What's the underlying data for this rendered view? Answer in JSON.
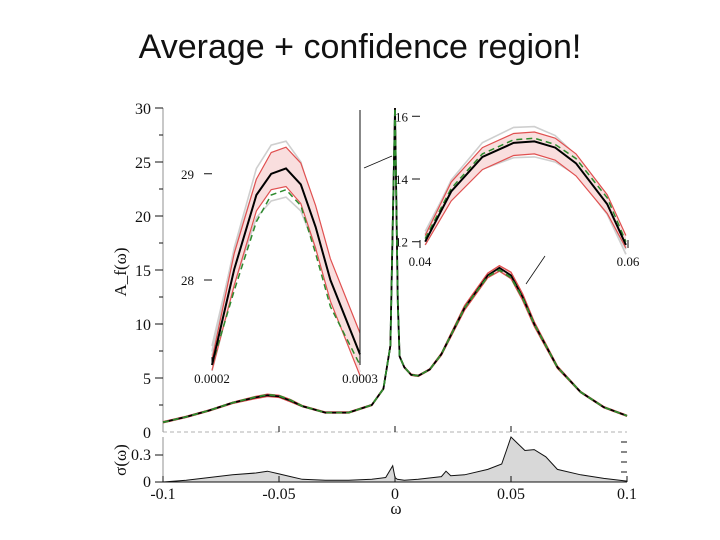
{
  "title": "Average + confidence region!",
  "chart_data": [
    {
      "name": "main",
      "type": "line",
      "ylabel": "A_f(ω)",
      "ylim": [
        0,
        30
      ],
      "xlim": [
        -0.1,
        0.1
      ],
      "yticks": [
        {
          "v": 0,
          "t": "0"
        },
        {
          "v": 5,
          "t": "5"
        },
        {
          "v": 10,
          "t": "10"
        },
        {
          "v": 15,
          "t": "15"
        },
        {
          "v": 20,
          "t": "20"
        },
        {
          "v": 25,
          "t": "25"
        },
        {
          "v": 30,
          "t": "30"
        }
      ],
      "series": [
        {
          "name": "average",
          "color": "#000000",
          "x": [
            -0.1,
            -0.09,
            -0.08,
            -0.07,
            -0.06,
            -0.055,
            -0.05,
            -0.045,
            -0.04,
            -0.03,
            -0.02,
            -0.01,
            -0.005,
            -0.002,
            0.0,
            0.0012,
            0.002,
            0.004,
            0.007,
            0.01,
            0.015,
            0.02,
            0.03,
            0.04,
            0.045,
            0.05,
            0.055,
            0.06,
            0.07,
            0.08,
            0.09,
            0.1
          ],
          "y": [
            0.9,
            1.4,
            2.0,
            2.7,
            3.2,
            3.4,
            3.3,
            2.9,
            2.4,
            1.8,
            1.8,
            2.5,
            4.0,
            8.0,
            30.0,
            12.0,
            7.0,
            6.0,
            5.3,
            5.2,
            5.8,
            7.2,
            11.5,
            14.5,
            15.2,
            14.5,
            12.5,
            10.0,
            6.0,
            3.7,
            2.3,
            1.5
          ]
        },
        {
          "name": "confidence-upper",
          "color": "#e05050",
          "x": [
            -0.1,
            -0.09,
            -0.08,
            -0.07,
            -0.06,
            -0.055,
            -0.05,
            -0.045,
            -0.04,
            -0.03,
            -0.02,
            -0.01,
            -0.005,
            -0.002,
            0.0,
            0.0012,
            0.002,
            0.004,
            0.007,
            0.01,
            0.015,
            0.02,
            0.03,
            0.04,
            0.045,
            0.05,
            0.055,
            0.06,
            0.07,
            0.08,
            0.09,
            0.1
          ],
          "y": [
            0.95,
            1.45,
            2.05,
            2.75,
            3.3,
            3.5,
            3.4,
            3.0,
            2.45,
            1.85,
            1.85,
            2.55,
            4.05,
            8.1,
            30.0,
            12.1,
            7.05,
            6.05,
            5.35,
            5.25,
            5.85,
            7.3,
            11.7,
            14.7,
            15.4,
            14.8,
            12.8,
            10.2,
            6.1,
            3.75,
            2.35,
            1.55
          ]
        },
        {
          "name": "confidence-lower",
          "color": "#e05050",
          "x": [
            -0.1,
            -0.09,
            -0.08,
            -0.07,
            -0.06,
            -0.055,
            -0.05,
            -0.045,
            -0.04,
            -0.03,
            -0.02,
            -0.01,
            -0.005,
            -0.002,
            0.0,
            0.0012,
            0.002,
            0.004,
            0.007,
            0.01,
            0.015,
            0.02,
            0.03,
            0.04,
            0.045,
            0.05,
            0.055,
            0.06,
            0.07,
            0.08,
            0.09,
            0.1
          ],
          "y": [
            0.85,
            1.35,
            1.95,
            2.65,
            3.1,
            3.3,
            3.2,
            2.8,
            2.35,
            1.75,
            1.75,
            2.45,
            3.95,
            7.9,
            30.0,
            11.9,
            6.95,
            5.95,
            5.25,
            5.15,
            5.75,
            7.1,
            11.3,
            14.3,
            14.9,
            14.2,
            12.2,
            9.8,
            5.9,
            3.65,
            2.25,
            1.45
          ]
        },
        {
          "name": "reference-dashed",
          "color": "#2e8b2e",
          "x": [
            -0.1,
            -0.09,
            -0.08,
            -0.07,
            -0.06,
            -0.055,
            -0.05,
            -0.045,
            -0.04,
            -0.03,
            -0.02,
            -0.01,
            -0.005,
            -0.002,
            0.0,
            0.0012,
            0.002,
            0.004,
            0.007,
            0.01,
            0.015,
            0.02,
            0.03,
            0.04,
            0.045,
            0.05,
            0.055,
            0.06,
            0.07,
            0.08,
            0.09,
            0.1
          ],
          "y": [
            0.9,
            1.4,
            2.0,
            2.7,
            3.25,
            3.45,
            3.35,
            2.95,
            2.4,
            1.8,
            1.8,
            2.5,
            4.0,
            8.0,
            30.0,
            12.0,
            7.0,
            6.0,
            5.3,
            5.2,
            5.8,
            7.2,
            11.5,
            14.4,
            15.0,
            14.3,
            12.4,
            10.0,
            6.0,
            3.7,
            2.3,
            1.5
          ]
        }
      ]
    },
    {
      "name": "inset-left",
      "type": "line",
      "xlim": [
        0.0002,
        0.0003
      ],
      "xticks": [
        {
          "v": 0.0002,
          "t": "0.0002"
        },
        {
          "v": 0.0003,
          "t": "0.0003"
        }
      ],
      "ylim": [
        27.2,
        29.6
      ],
      "yticks": [
        {
          "v": 28,
          "t": "28"
        },
        {
          "v": 29,
          "t": "29"
        }
      ],
      "series": [
        {
          "name": "average",
          "color": "#000000",
          "x": [
            0.0002,
            0.000215,
            0.00023,
            0.00024,
            0.00025,
            0.00026,
            0.00027,
            0.00028,
            0.0003
          ],
          "y": [
            27.2,
            28.1,
            28.8,
            29.0,
            29.05,
            28.9,
            28.5,
            28.0,
            27.3
          ]
        },
        {
          "name": "confidence-upper",
          "color": "#e05050",
          "x": [
            0.0002,
            0.000215,
            0.00023,
            0.00024,
            0.00025,
            0.00026,
            0.00027,
            0.00028,
            0.0003
          ],
          "y": [
            27.25,
            28.25,
            28.95,
            29.2,
            29.25,
            29.1,
            28.7,
            28.2,
            27.5
          ]
        },
        {
          "name": "confidence-lower",
          "color": "#e05050",
          "x": [
            0.0002,
            0.000215,
            0.00023,
            0.00024,
            0.00025,
            0.00026,
            0.00027,
            0.00028,
            0.0003
          ],
          "y": [
            27.15,
            27.95,
            28.65,
            28.85,
            28.88,
            28.72,
            28.3,
            27.8,
            27.1
          ]
        },
        {
          "name": "reference-dashed",
          "color": "#2e8b2e",
          "x": [
            0.0002,
            0.000215,
            0.00023,
            0.00024,
            0.00025,
            0.00026,
            0.00027,
            0.00028,
            0.0003
          ],
          "y": [
            27.2,
            27.9,
            28.55,
            28.8,
            28.85,
            28.7,
            28.25,
            27.75,
            27.2
          ]
        }
      ]
    },
    {
      "name": "inset-right",
      "type": "line",
      "xlim": [
        0.04,
        0.06
      ],
      "xticks": [
        {
          "v": 0.04,
          "t": "0.04"
        },
        {
          "v": 0.06,
          "t": "0.06"
        }
      ],
      "ylim": [
        11.8,
        16.2
      ],
      "yticks": [
        {
          "v": 12,
          "t": "12"
        },
        {
          "v": 14,
          "t": "14"
        },
        {
          "v": 16,
          "t": "16"
        }
      ],
      "series": [
        {
          "name": "average",
          "color": "#000000",
          "x": [
            0.0405,
            0.043,
            0.046,
            0.049,
            0.051,
            0.053,
            0.055,
            0.058,
            0.0598
          ],
          "y": [
            12.0,
            13.6,
            14.7,
            15.15,
            15.2,
            15.0,
            14.5,
            13.2,
            11.9
          ]
        },
        {
          "name": "confidence-upper",
          "color": "#e05050",
          "x": [
            0.0405,
            0.043,
            0.046,
            0.049,
            0.051,
            0.053,
            0.055,
            0.058,
            0.0598
          ],
          "y": [
            12.2,
            13.9,
            15.0,
            15.45,
            15.5,
            15.3,
            14.8,
            13.5,
            12.2
          ]
        },
        {
          "name": "confidence-lower",
          "color": "#e05050",
          "x": [
            0.0405,
            0.043,
            0.046,
            0.049,
            0.051,
            0.053,
            0.055,
            0.058,
            0.0598
          ],
          "y": [
            11.9,
            13.3,
            14.3,
            14.75,
            14.8,
            14.6,
            14.1,
            12.9,
            11.8
          ]
        },
        {
          "name": "reference-dashed",
          "color": "#2e8b2e",
          "x": [
            0.0405,
            0.043,
            0.046,
            0.049,
            0.051,
            0.053,
            0.055,
            0.058,
            0.0598
          ],
          "y": [
            12.1,
            13.7,
            14.8,
            15.25,
            15.3,
            15.1,
            14.65,
            13.4,
            12.0
          ]
        }
      ]
    },
    {
      "name": "sigma-panel",
      "type": "area",
      "ylabel": "σ(ω)",
      "xlabel": "ω",
      "ylim": [
        0,
        0.5
      ],
      "xlim": [
        -0.1,
        0.1
      ],
      "yticks": [
        {
          "v": 0,
          "t": "0"
        },
        {
          "v": 0.3,
          "t": "0.3"
        }
      ],
      "xticks": [
        {
          "v": -0.1,
          "t": "-0.1"
        },
        {
          "v": -0.05,
          "t": "-0.05"
        },
        {
          "v": 0,
          "t": "0"
        },
        {
          "v": 0.05,
          "t": "0.05"
        },
        {
          "v": 0.1,
          "t": "0.1"
        }
      ],
      "series": [
        {
          "name": "sigma",
          "color": "#d8d8d8",
          "x": [
            -0.1,
            -0.09,
            -0.08,
            -0.07,
            -0.06,
            -0.055,
            -0.05,
            -0.045,
            -0.04,
            -0.03,
            -0.02,
            -0.01,
            -0.004,
            -0.001,
            0.0,
            0.001,
            0.004,
            0.01,
            0.02,
            0.022,
            0.024,
            0.03,
            0.04,
            0.046,
            0.048,
            0.05,
            0.052,
            0.056,
            0.06,
            0.065,
            0.07,
            0.08,
            0.09,
            0.1
          ],
          "y": [
            0.0,
            0.02,
            0.05,
            0.08,
            0.1,
            0.12,
            0.09,
            0.06,
            0.03,
            0.02,
            0.02,
            0.03,
            0.05,
            0.18,
            0.05,
            0.03,
            0.02,
            0.03,
            0.06,
            0.12,
            0.07,
            0.08,
            0.14,
            0.2,
            0.35,
            0.5,
            0.45,
            0.35,
            0.36,
            0.28,
            0.14,
            0.08,
            0.04,
            0.01
          ]
        }
      ]
    }
  ]
}
